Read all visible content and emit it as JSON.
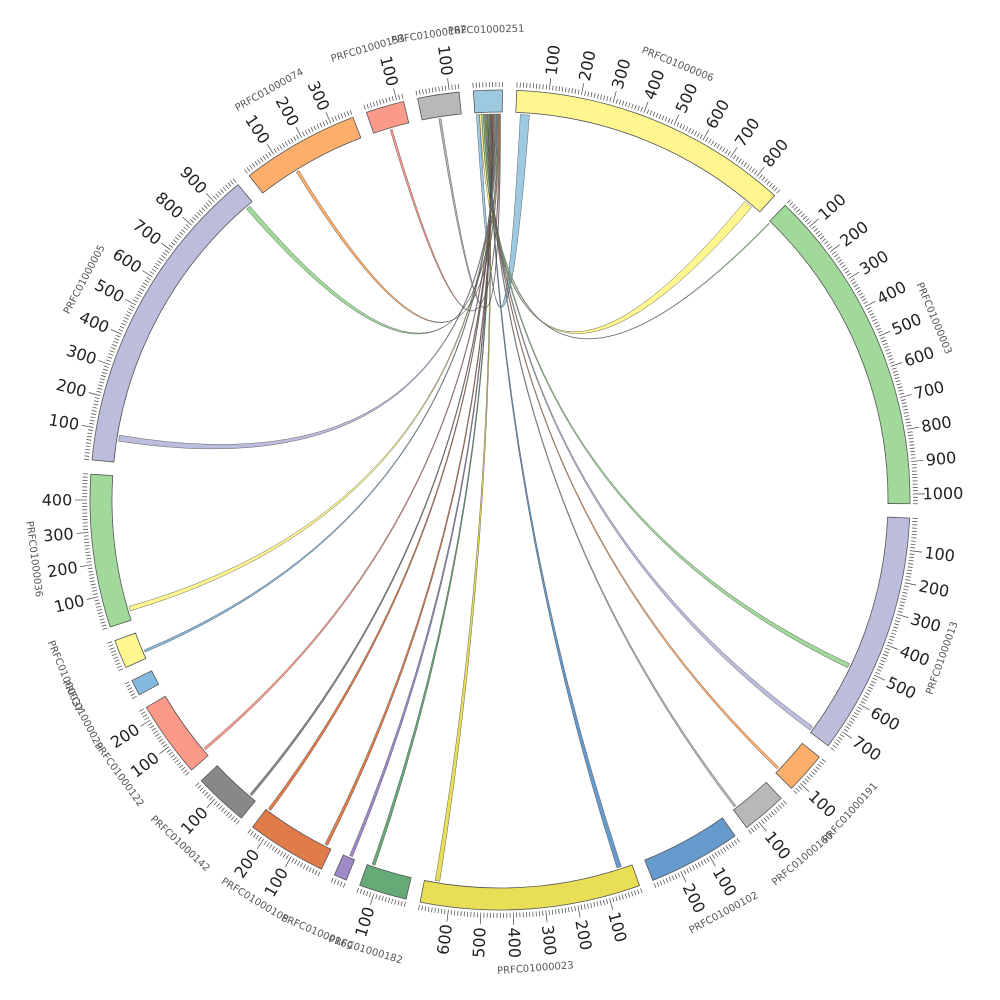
{
  "chart_data": {
    "type": "chord",
    "title": "",
    "segments": [
      {
        "name": "PRFC01000251",
        "length": 90,
        "color": "#9ecae1",
        "label_step": 100
      },
      {
        "name": "PRFC01000006",
        "length": 880,
        "color": "#fff68f",
        "label_step": 100
      },
      {
        "name": "PRFC01000003",
        "length": 1030,
        "color": "#a1d99b",
        "label_step": 100
      },
      {
        "name": "PRFC01000013",
        "length": 760,
        "color": "#bcbddc",
        "label_step": 100
      },
      {
        "name": "PRFC01000191",
        "length": 130,
        "color": "#fdae6b",
        "label_step": 100
      },
      {
        "name": "PRFC01000160",
        "length": 140,
        "color": "#b8b8b8",
        "label_step": 100
      },
      {
        "name": "PRFC01000102",
        "length": 290,
        "color": "#6699cc",
        "label_step": 100
      },
      {
        "name": "PRFC01000023",
        "length": 690,
        "color": "#e8df57",
        "label_step": 100
      },
      {
        "name": "PRFC01000182",
        "length": 150,
        "color": "#66aa77",
        "label_step": 100
      },
      {
        "name": "PRFC01000169",
        "length": 40,
        "color": "#9e8ac8",
        "label_step": 100
      },
      {
        "name": "PRFC01000108",
        "length": 250,
        "color": "#e07b4a",
        "label_step": 100
      },
      {
        "name": "PRFC01000142",
        "length": 170,
        "color": "#888888",
        "label_step": 100
      },
      {
        "name": "PRFC01000122",
        "length": 240,
        "color": "#fc9a8a",
        "label_step": 100
      },
      {
        "name": "PRFC01000029",
        "length": 50,
        "color": "#85b9dd",
        "label_step": 100
      },
      {
        "name": "PRFC01000037",
        "length": 90,
        "color": "#fff68f",
        "label_step": 100
      },
      {
        "name": "PRFC01000036",
        "length": 480,
        "color": "#a1d99b",
        "label_step": 100
      },
      {
        "name": "PRFC01000005",
        "length": 990,
        "color": "#bcbddc",
        "label_step": 100
      },
      {
        "name": "PRFC01000074",
        "length": 370,
        "color": "#fdae6b",
        "label_step": 100
      },
      {
        "name": "PRFC01000153",
        "length": 120,
        "color": "#fc9a8a",
        "label_step": 100
      },
      {
        "name": "PRFC01000162",
        "length": 130,
        "color": "#b8b8b8",
        "label_step": 100
      }
    ],
    "links": [
      {
        "source": "PRFC01000251",
        "source_pos": [
          5,
          15
        ],
        "target": "PRFC01000006",
        "target_pos": [
          15,
          45
        ],
        "color": "#9ecae1"
      },
      {
        "source": "PRFC01000251",
        "source_pos": [
          15,
          22
        ],
        "target": "PRFC01000006",
        "target_pos": [
          820,
          850
        ],
        "color": "#fff68f"
      },
      {
        "source": "PRFC01000251",
        "source_pos": [
          22,
          28
        ],
        "target": "PRFC01000003",
        "target_pos": [
          2,
          5
        ],
        "color": "#a1d99b"
      },
      {
        "source": "PRFC01000251",
        "source_pos": [
          28,
          32
        ],
        "target": "PRFC01000013",
        "target_pos": [
          500,
          515
        ],
        "color": "#a1d99b"
      },
      {
        "source": "PRFC01000251",
        "source_pos": [
          32,
          35
        ],
        "target": "PRFC01000013",
        "target_pos": [
          740,
          755
        ],
        "color": "#bcbddc"
      },
      {
        "source": "PRFC01000251",
        "source_pos": [
          35,
          38
        ],
        "target": "PRFC01000191",
        "target_pos": [
          110,
          118
        ],
        "color": "#fdae6b"
      },
      {
        "source": "PRFC01000251",
        "source_pos": [
          38,
          41
        ],
        "target": "PRFC01000160",
        "target_pos": [
          125,
          132
        ],
        "color": "#b8b8b8"
      },
      {
        "source": "PRFC01000251",
        "source_pos": [
          41,
          44
        ],
        "target": "PRFC01000023",
        "target_pos": [
          35,
          50
        ],
        "color": "#6699cc"
      },
      {
        "source": "PRFC01000251",
        "source_pos": [
          44,
          47
        ],
        "target": "PRFC01000023",
        "target_pos": [
          640,
          655
        ],
        "color": "#e8df57"
      },
      {
        "source": "PRFC01000251",
        "source_pos": [
          47,
          50
        ],
        "target": "PRFC01000182",
        "target_pos": [
          125,
          135
        ],
        "color": "#66aa77"
      },
      {
        "source": "PRFC01000251",
        "source_pos": [
          50,
          53
        ],
        "target": "PRFC01000169",
        "target_pos": [
          10,
          20
        ],
        "color": "#9e8ac8"
      },
      {
        "source": "PRFC01000251",
        "source_pos": [
          53,
          56
        ],
        "target": "PRFC01000108",
        "target_pos": [
          15,
          25
        ],
        "color": "#e07b4a"
      },
      {
        "source": "PRFC01000251",
        "source_pos": [
          56,
          58
        ],
        "target": "PRFC01000108",
        "target_pos": [
          235,
          245
        ],
        "color": "#e07b4a"
      },
      {
        "source": "PRFC01000251",
        "source_pos": [
          58,
          61
        ],
        "target": "PRFC01000142",
        "target_pos": [
          20,
          28
        ],
        "color": "#888888"
      },
      {
        "source": "PRFC01000251",
        "source_pos": [
          61,
          64
        ],
        "target": "PRFC01000122",
        "target_pos": [
          20,
          28
        ],
        "color": "#fc9a8a"
      },
      {
        "source": "PRFC01000251",
        "source_pos": [
          64,
          67
        ],
        "target": "PRFC01000037",
        "target_pos": [
          20,
          28
        ],
        "color": "#85b9dd"
      },
      {
        "source": "PRFC01000251",
        "source_pos": [
          67,
          70
        ],
        "target": "PRFC01000036",
        "target_pos": [
          30,
          45
        ],
        "color": "#fff68f"
      },
      {
        "source": "PRFC01000251",
        "source_pos": [
          70,
          73
        ],
        "target": "PRFC01000005",
        "target_pos": [
          70,
          90
        ],
        "color": "#bcbddc"
      },
      {
        "source": "PRFC01000251",
        "source_pos": [
          73,
          76
        ],
        "target": "PRFC01000005",
        "target_pos": [
          960,
          975
        ],
        "color": "#a1d99b"
      },
      {
        "source": "PRFC01000251",
        "source_pos": [
          76,
          79
        ],
        "target": "PRFC01000074",
        "target_pos": [
          130,
          140
        ],
        "color": "#fdae6b"
      },
      {
        "source": "PRFC01000251",
        "source_pos": [
          79,
          82
        ],
        "target": "PRFC01000153",
        "target_pos": [
          55,
          62
        ],
        "color": "#fc9a8a"
      },
      {
        "source": "PRFC01000251",
        "source_pos": [
          82,
          85
        ],
        "target": "PRFC01000162",
        "target_pos": [
          55,
          62
        ],
        "color": "#b8b8b8"
      }
    ]
  }
}
